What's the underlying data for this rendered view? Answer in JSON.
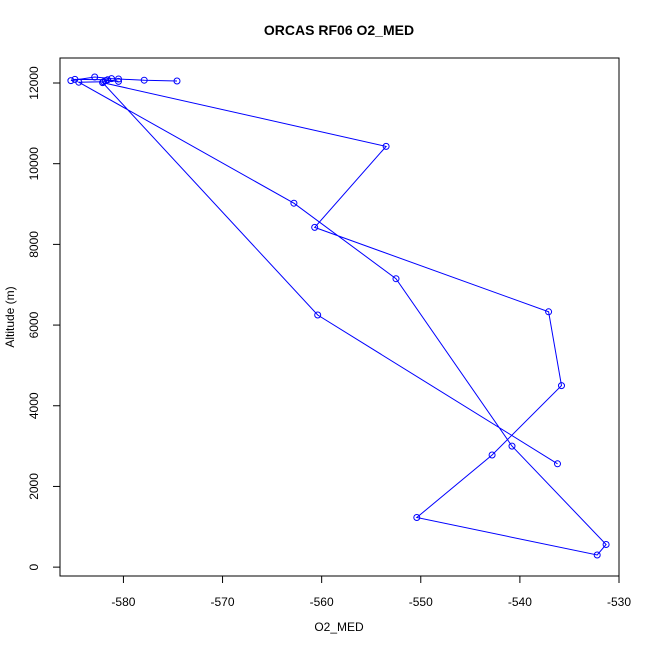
{
  "chart_data": {
    "type": "line",
    "title": "ORCAS RF06 O2_MED",
    "xlabel": "O2_MED",
    "ylabel": "Altitude (m)",
    "xlim": [
      -586.4,
      -530.0
    ],
    "ylim": [
      -220,
      12620
    ],
    "x_ticks": [
      -580,
      -570,
      -560,
      -550,
      -540,
      -530
    ],
    "y_ticks": [
      0,
      2000,
      4000,
      6000,
      8000,
      10000,
      12000
    ],
    "grid": false,
    "legend": "none",
    "color": "#0000ff",
    "marker": "open-circle",
    "series": [
      {
        "points": [
          {
            "x": -574.6,
            "y": 12050
          },
          {
            "x": -577.9,
            "y": 12070
          },
          {
            "x": -580.5,
            "y": 12100
          },
          {
            "x": -581.2,
            "y": 12110
          },
          {
            "x": -582.9,
            "y": 12150
          },
          {
            "x": -585.3,
            "y": 12060
          },
          {
            "x": -584.9,
            "y": 12090
          },
          {
            "x": -581.6,
            "y": 12080
          },
          {
            "x": -580.5,
            "y": 12040
          },
          {
            "x": -581.8,
            "y": 12060
          },
          {
            "x": -582.0,
            "y": 12030
          },
          {
            "x": -584.5,
            "y": 12020
          },
          {
            "x": -562.8,
            "y": 9020
          },
          {
            "x": -552.5,
            "y": 7150
          },
          {
            "x": -540.8,
            "y": 3000
          },
          {
            "x": -531.3,
            "y": 560
          },
          {
            "x": -532.2,
            "y": 300
          },
          {
            "x": -550.4,
            "y": 1230
          },
          {
            "x": -542.8,
            "y": 2780
          },
          {
            "x": -535.8,
            "y": 4500
          },
          {
            "x": -537.1,
            "y": 6330
          },
          {
            "x": -560.7,
            "y": 8420
          },
          {
            "x": -553.5,
            "y": 10430
          },
          {
            "x": -582.1,
            "y": 12010
          },
          {
            "x": -560.4,
            "y": 6250
          },
          {
            "x": -536.2,
            "y": 2560
          }
        ]
      }
    ]
  }
}
